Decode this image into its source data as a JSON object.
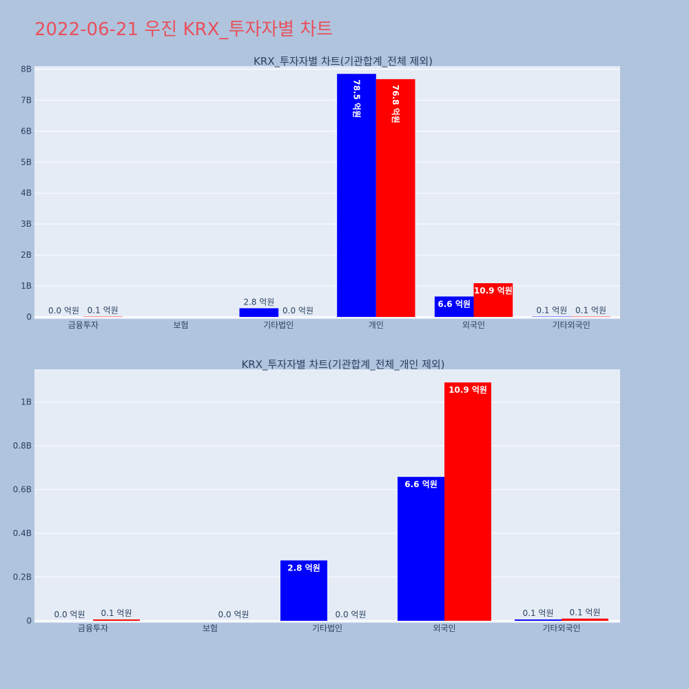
{
  "page_title": "2022-06-21 우진 KRX_투자자별 차트",
  "colors": {
    "buy": "#0000ff",
    "sell": "#ff0000",
    "plot_bg": "#e5ecf6",
    "page_bg": "#b0c4de",
    "title": "#e8505b"
  },
  "chart_data": [
    {
      "type": "bar",
      "title": "KRX_투자자별 차트(기관합계_전체 제외)",
      "categories": [
        "금융투자",
        "보험",
        "기타법인",
        "개인",
        "외국인",
        "기타외국인"
      ],
      "ylim": [
        0,
        8.1
      ],
      "yticks": [
        0,
        1,
        2,
        3,
        4,
        5,
        6,
        7,
        8
      ],
      "yticklabels": [
        "0",
        "1B",
        "2B",
        "3B",
        "4B",
        "5B",
        "6B",
        "7B",
        "8B"
      ],
      "series": [
        {
          "values": [
            0.0,
            null,
            0.28,
            7.85,
            0.66,
            0.01
          ],
          "labels": [
            "0.0 억원",
            "",
            "2.8 억원",
            "78.5 억원",
            "6.6 억원",
            "0.1 억원"
          ]
        },
        {
          "values": [
            0.01,
            null,
            0.0,
            7.68,
            1.09,
            0.01
          ],
          "labels": [
            "0.1 억원",
            "",
            "0.0 억원",
            "76.8 억원",
            "10.9 억원",
            "0.1 억원"
          ]
        }
      ],
      "grid": true
    },
    {
      "type": "bar",
      "title": "KRX_투자자별 차트(기관합계_전체_개인 제외)",
      "categories": [
        "금융투자",
        "보험",
        "기타법인",
        "외국인",
        "기타외국인"
      ],
      "ylim": [
        0,
        1.15
      ],
      "yticks": [
        0,
        0.2,
        0.4,
        0.6,
        0.8,
        1.0
      ],
      "yticklabels": [
        "0",
        "0.2B",
        "0.4B",
        "0.6B",
        "0.8B",
        "1B"
      ],
      "series": [
        {
          "values": [
            0.0,
            null,
            0.276,
            0.658,
            0.006
          ],
          "labels": [
            "0.0 억원",
            "",
            "2.8 억원",
            "6.6 억원",
            "0.1 억원"
          ]
        },
        {
          "values": [
            0.006,
            0.0,
            0.0,
            1.09,
            0.01
          ],
          "labels": [
            "0.1 억원",
            "0.0 억원",
            "0.0 억원",
            "10.9 억원",
            "0.1 억원"
          ]
        }
      ],
      "grid": true
    }
  ]
}
